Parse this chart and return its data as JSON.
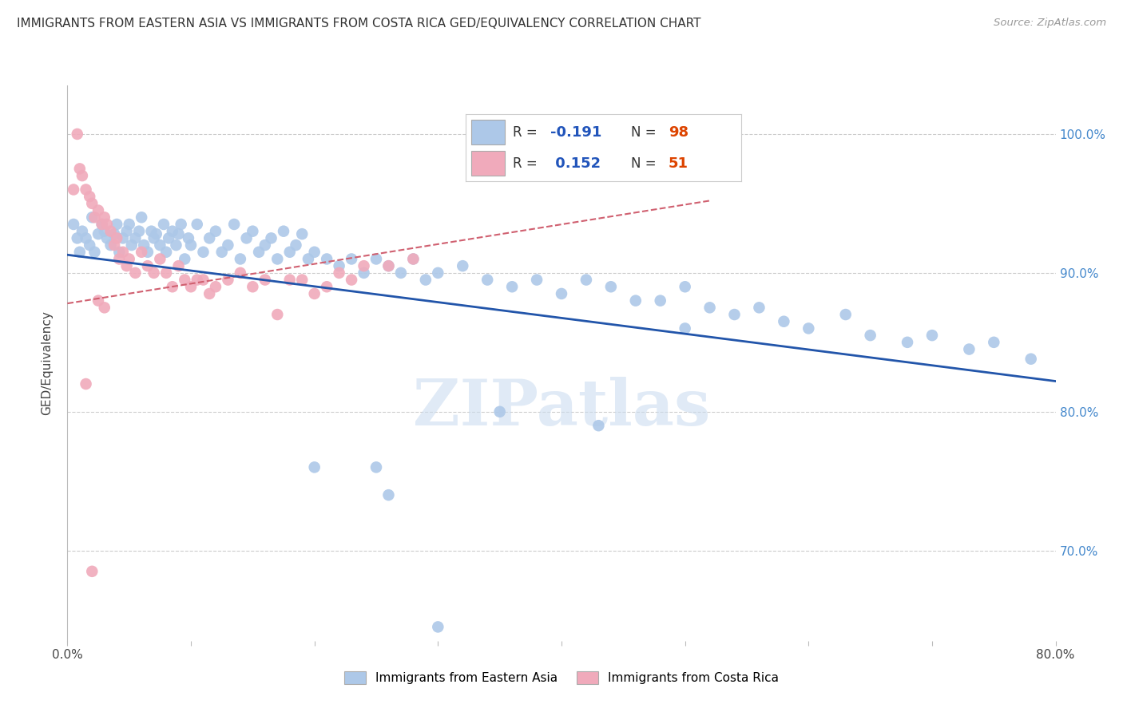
{
  "title": "IMMIGRANTS FROM EASTERN ASIA VS IMMIGRANTS FROM COSTA RICA GED/EQUIVALENCY CORRELATION CHART",
  "source": "Source: ZipAtlas.com",
  "ylabel": "GED/Equivalency",
  "x_min": 0.0,
  "x_max": 0.8,
  "y_min": 0.635,
  "y_max": 1.035,
  "x_tick_vals": [
    0.0,
    0.1,
    0.2,
    0.3,
    0.4,
    0.5,
    0.6,
    0.7,
    0.8
  ],
  "x_tick_labels_show": [
    "0.0%",
    "",
    "",
    "",
    "",
    "",
    "",
    "",
    "80.0%"
  ],
  "y_tick_vals": [
    0.7,
    0.8,
    0.9,
    1.0
  ],
  "y_tick_labels": [
    "70.0%",
    "80.0%",
    "90.0%",
    "100.0%"
  ],
  "legend_blue_r": "-0.191",
  "legend_blue_n": "98",
  "legend_pink_r": "0.152",
  "legend_pink_n": "51",
  "legend_label_blue": "Immigrants from Eastern Asia",
  "legend_label_pink": "Immigrants from Costa Rica",
  "blue_color": "#adc8e8",
  "blue_line_color": "#2255aa",
  "pink_color": "#f0aabb",
  "pink_dashed_color": "#d06070",
  "watermark": "ZIPatlas",
  "blue_line_x0": 0.0,
  "blue_line_x1": 0.8,
  "blue_line_y0": 0.913,
  "blue_line_y1": 0.822,
  "pink_line_x0": 0.0,
  "pink_line_x1": 0.52,
  "pink_line_y0": 0.878,
  "pink_line_y1": 0.952,
  "blue_x": [
    0.005,
    0.008,
    0.01,
    0.012,
    0.015,
    0.018,
    0.02,
    0.022,
    0.025,
    0.028,
    0.03,
    0.032,
    0.035,
    0.038,
    0.04,
    0.042,
    0.045,
    0.048,
    0.05,
    0.052,
    0.055,
    0.058,
    0.06,
    0.062,
    0.065,
    0.068,
    0.07,
    0.072,
    0.075,
    0.078,
    0.08,
    0.082,
    0.085,
    0.088,
    0.09,
    0.092,
    0.095,
    0.098,
    0.1,
    0.105,
    0.11,
    0.115,
    0.12,
    0.125,
    0.13,
    0.135,
    0.14,
    0.145,
    0.15,
    0.155,
    0.16,
    0.165,
    0.17,
    0.175,
    0.18,
    0.185,
    0.19,
    0.195,
    0.2,
    0.21,
    0.22,
    0.23,
    0.24,
    0.25,
    0.26,
    0.27,
    0.28,
    0.29,
    0.3,
    0.32,
    0.34,
    0.36,
    0.38,
    0.4,
    0.42,
    0.44,
    0.46,
    0.48,
    0.5,
    0.52,
    0.54,
    0.56,
    0.58,
    0.6,
    0.63,
    0.65,
    0.68,
    0.7,
    0.73,
    0.75,
    0.78,
    0.5,
    0.26,
    0.3,
    0.35,
    0.43,
    0.2,
    0.25
  ],
  "blue_y": [
    0.935,
    0.925,
    0.915,
    0.93,
    0.925,
    0.92,
    0.94,
    0.915,
    0.928,
    0.935,
    0.93,
    0.925,
    0.92,
    0.928,
    0.935,
    0.915,
    0.925,
    0.93,
    0.935,
    0.92,
    0.925,
    0.93,
    0.94,
    0.92,
    0.915,
    0.93,
    0.925,
    0.928,
    0.92,
    0.935,
    0.915,
    0.925,
    0.93,
    0.92,
    0.928,
    0.935,
    0.91,
    0.925,
    0.92,
    0.935,
    0.915,
    0.925,
    0.93,
    0.915,
    0.92,
    0.935,
    0.91,
    0.925,
    0.93,
    0.915,
    0.92,
    0.925,
    0.91,
    0.93,
    0.915,
    0.92,
    0.928,
    0.91,
    0.915,
    0.91,
    0.905,
    0.91,
    0.9,
    0.91,
    0.905,
    0.9,
    0.91,
    0.895,
    0.9,
    0.905,
    0.895,
    0.89,
    0.895,
    0.885,
    0.895,
    0.89,
    0.88,
    0.88,
    0.89,
    0.875,
    0.87,
    0.875,
    0.865,
    0.86,
    0.87,
    0.855,
    0.85,
    0.855,
    0.845,
    0.85,
    0.838,
    0.86,
    0.74,
    0.645,
    0.8,
    0.79,
    0.76,
    0.76
  ],
  "pink_x": [
    0.005,
    0.008,
    0.01,
    0.012,
    0.015,
    0.018,
    0.02,
    0.022,
    0.025,
    0.028,
    0.03,
    0.032,
    0.035,
    0.038,
    0.04,
    0.042,
    0.045,
    0.048,
    0.05,
    0.055,
    0.06,
    0.065,
    0.07,
    0.075,
    0.08,
    0.085,
    0.09,
    0.095,
    0.1,
    0.105,
    0.11,
    0.115,
    0.12,
    0.13,
    0.14,
    0.15,
    0.16,
    0.17,
    0.18,
    0.19,
    0.2,
    0.21,
    0.22,
    0.23,
    0.24,
    0.26,
    0.28,
    0.015,
    0.025,
    0.03,
    0.02
  ],
  "pink_y": [
    0.96,
    1.0,
    0.975,
    0.97,
    0.96,
    0.955,
    0.95,
    0.94,
    0.945,
    0.935,
    0.94,
    0.935,
    0.93,
    0.92,
    0.925,
    0.91,
    0.915,
    0.905,
    0.91,
    0.9,
    0.915,
    0.905,
    0.9,
    0.91,
    0.9,
    0.89,
    0.905,
    0.895,
    0.89,
    0.895,
    0.895,
    0.885,
    0.89,
    0.895,
    0.9,
    0.89,
    0.895,
    0.87,
    0.895,
    0.895,
    0.885,
    0.89,
    0.9,
    0.895,
    0.905,
    0.905,
    0.91,
    0.82,
    0.88,
    0.875,
    0.685
  ]
}
